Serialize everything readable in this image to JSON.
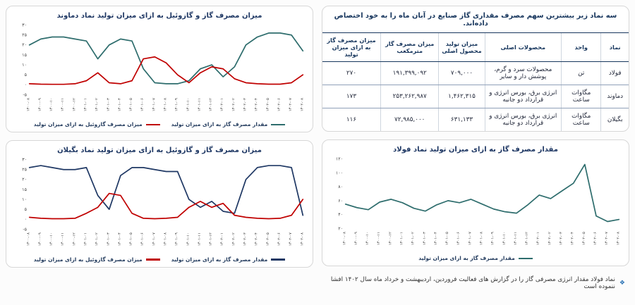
{
  "colors": {
    "gas_line": "#2e6d6d",
    "gasoil_line": "#c00000",
    "navy_line": "#1f3864",
    "title": "#1f3864",
    "footnote_icon": "#2e75b6"
  },
  "table": {
    "title": "سه نماد زیر بیشترین سهم مصرف مقداری گاز صنایع در آبان ماه را به خود اختصاص داده‌اند.",
    "headers": [
      "نماد",
      "واحد",
      "محصولات اصلی",
      "میزان تولید محصول اصلی",
      "میزان مصرف گاز مترمکعب",
      "میزان مصرف گاز به ازای میزان تولید"
    ],
    "rows": [
      [
        "فولاد",
        "تن",
        "محصولات سرد و گرم، پوشش دار و سایر",
        "۷۰۹,۰۰۰",
        "۱۹۱,۳۹۹,۰۹۲",
        "۲۷۰"
      ],
      [
        "دماوند",
        "مگاوات ساعت",
        "انرژی برق، بورس انرژی و قرارداد دو جانبه",
        "۱,۴۶۲,۳۱۵",
        "۲۵۳,۲۶۲,۹۸۷",
        "۱۷۳"
      ],
      [
        "بگیلان",
        "مگاوات ساعت",
        "انرژی برق، بورس انرژی و قرارداد دو جانبه",
        "۶۳۱,۱۳۳",
        "۷۲,۹۸۵,۰۰۰",
        "۱۱۶"
      ]
    ]
  },
  "footnote": {
    "bullet": "❖",
    "text": "نماد فولاد مقدار انرژی مصرفی گاز را در گزارش های فعالیت فروردین، اردیبهشت و خرداد ماه سال ۱۴۰۲ افشا ننموده است"
  },
  "chart_data": [
    {
      "type": "line",
      "title": "میزان مصرف گاز و گازوئیل به ازای میزان تولید نماد دماوند",
      "xlabel": "",
      "ylabel": "",
      "grid": false,
      "legend_position": "bottom",
      "ylim": [
        -5,
        30
      ],
      "yticks": [
        [
          30,
          "۳۰"
        ],
        [
          25,
          "۲۵"
        ],
        [
          20,
          "۲۰"
        ],
        [
          15,
          "۱۵"
        ],
        [
          10,
          "۱۰"
        ],
        [
          5,
          "۵"
        ],
        [
          0,
          "۰"
        ],
        [
          -5,
          "-۵"
        ]
      ],
      "x": [
        "۱۴۰۰-۰۸",
        "۱۴۰۰-۰۹",
        "۱۴۰۰-۱۰",
        "۱۴۰۰-۱۱",
        "۱۴۰۰-۱۲",
        "۱۴۰۱-۰۱",
        "۱۴۰۱-۰۲",
        "۱۴۰۱-۰۳",
        "۱۴۰۱-۰۴",
        "۱۴۰۱-۰۵",
        "۱۴۰۱-۰۶",
        "۱۴۰۱-۰۷",
        "۱۴۰۱-۰۸",
        "۱۴۰۱-۰۹",
        "۱۴۰۱-۱۰",
        "۱۴۰۱-۱۱",
        "۱۴۰۱-۱۲",
        "۱۴۰۲-۰۱",
        "۱۴۰۲-۰۲",
        "۱۴۰۲-۰۳",
        "۱۴۰۲-۰۴",
        "۱۴۰۲-۰۵",
        "۱۴۰۲-۰۶",
        "۱۴۰۲-۰۷",
        "۱۴۰۲-۰۸"
      ],
      "series": [
        {
          "name": "مقدار مصرف گاز به ازای میزان تولید",
          "color": "#2e6d6d",
          "values": [
            20,
            23,
            24,
            24,
            23,
            22,
            13,
            20,
            23,
            22,
            8,
            1,
            0.5,
            0.5,
            2,
            8,
            10,
            4,
            9,
            20,
            24,
            26,
            26,
            25,
            17
          ]
        },
        {
          "name": "میزان مصرف گازوئیل به ازای میزان تولید",
          "color": "#c00000",
          "values": [
            0.5,
            0.3,
            0.2,
            0.2,
            0.5,
            2,
            6,
            1,
            0.5,
            2,
            13,
            14,
            11,
            5,
            1,
            6,
            9,
            8,
            3,
            1,
            0.5,
            0.3,
            0.3,
            1,
            5
          ]
        }
      ]
    },
    {
      "type": "line",
      "title": "میزان مصرف گاز و گازوئیل به ازای میزان تولید نماد بگیلان",
      "xlabel": "",
      "ylabel": "",
      "grid": false,
      "legend_position": "bottom",
      "ylim": [
        -5,
        30
      ],
      "yticks": [
        [
          30,
          "۳۰"
        ],
        [
          25,
          "۲۵"
        ],
        [
          20,
          "۲۰"
        ],
        [
          15,
          "۱۵"
        ],
        [
          10,
          "۱۰"
        ],
        [
          5,
          "۵"
        ],
        [
          0,
          "۰"
        ],
        [
          -5,
          "-۵"
        ]
      ],
      "x": [
        "۱۴۰۰-۰۸",
        "۱۴۰۰-۰۹",
        "۱۴۰۰-۱۰",
        "۱۴۰۰-۱۱",
        "۱۴۰۰-۱۲",
        "۱۴۰۱-۰۱",
        "۱۴۰۱-۰۲",
        "۱۴۰۱-۰۳",
        "۱۴۰۱-۰۴",
        "۱۴۰۱-۰۵",
        "۱۴۰۱-۰۶",
        "۱۴۰۱-۰۷",
        "۱۴۰۱-۰۸",
        "۱۴۰۱-۰۹",
        "۱۴۰۱-۱۰",
        "۱۴۰۱-۱۱",
        "۱۴۰۱-۱۲",
        "۱۴۰۲-۰۱",
        "۱۴۰۲-۰۲",
        "۱۴۰۲-۰۳",
        "۱۴۰۲-۰۴",
        "۱۴۰۲-۰۵",
        "۱۴۰۲-۰۶",
        "۱۴۰۲-۰۷",
        "۱۴۰۲-۰۸"
      ],
      "series": [
        {
          "name": "مقدار مصرف گاز به ازای میزان تولید",
          "color": "#1f3864",
          "values": [
            26,
            27,
            26,
            25,
            25,
            26,
            12,
            5,
            22,
            26,
            26,
            25,
            24,
            24,
            10,
            6,
            9,
            4,
            3,
            20,
            26,
            27,
            27,
            26,
            2
          ]
        },
        {
          "name": "میزان مصرف گازوئیل به ازای میزان تولید",
          "color": "#c00000",
          "values": [
            1,
            0.5,
            0.3,
            0.3,
            0.5,
            3,
            6,
            13,
            12,
            3,
            0.5,
            0.3,
            0.5,
            1,
            6,
            9,
            6,
            8,
            2,
            1,
            0.5,
            0.3,
            0.5,
            2,
            10
          ]
        }
      ]
    },
    {
      "type": "line",
      "title": "مقدار مصرف گاز به ازای میزان تولید نماد فولاد",
      "xlabel": "",
      "ylabel": "",
      "grid": false,
      "legend_position": "bottom",
      "ylim": [
        20,
        120
      ],
      "yticks": [
        [
          120,
          "۱۲۰"
        ],
        [
          100,
          "۱۰۰"
        ],
        [
          80,
          "۸۰"
        ],
        [
          60,
          "۶۰"
        ],
        [
          40,
          "۴۰"
        ],
        [
          20,
          "۲۰"
        ]
      ],
      "x": [
        "۱۴۰۰-۰۸",
        "۱۴۰۰-۰۹",
        "۱۴۰۰-۱۰",
        "۱۴۰۰-۱۱",
        "۱۴۰۰-۱۲",
        "۱۴۰۱-۰۱",
        "۱۴۰۱-۰۲",
        "۱۴۰۱-۰۳",
        "۱۴۰۱-۰۴",
        "۱۴۰۱-۰۵",
        "۱۴۰۱-۰۶",
        "۱۴۰۱-۰۷",
        "۱۴۰۱-۰۸",
        "۱۴۰۱-۰۹",
        "۱۴۰۱-۱۰",
        "۱۴۰۱-۱۱",
        "۱۴۰۱-۱۲",
        "۱۴۰۲-۰۱",
        "۱۴۰۲-۰۲",
        "۱۴۰۲-۰۳",
        "۱۴۰۲-۰۴",
        "۱۴۰۲-۰۵",
        "۱۴۰۲-۰۶",
        "۱۴۰۲-۰۷",
        "۱۴۰۲-۰۸"
      ],
      "series": [
        {
          "name": "مقدار مصرف گاز به ازای میزان تولید",
          "color": "#2e6d6d",
          "values": [
            55,
            50,
            47,
            58,
            62,
            57,
            49,
            45,
            54,
            60,
            57,
            62,
            55,
            48,
            44,
            42,
            54,
            68,
            63,
            74,
            85,
            112,
            38,
            30,
            33
          ]
        }
      ]
    }
  ]
}
